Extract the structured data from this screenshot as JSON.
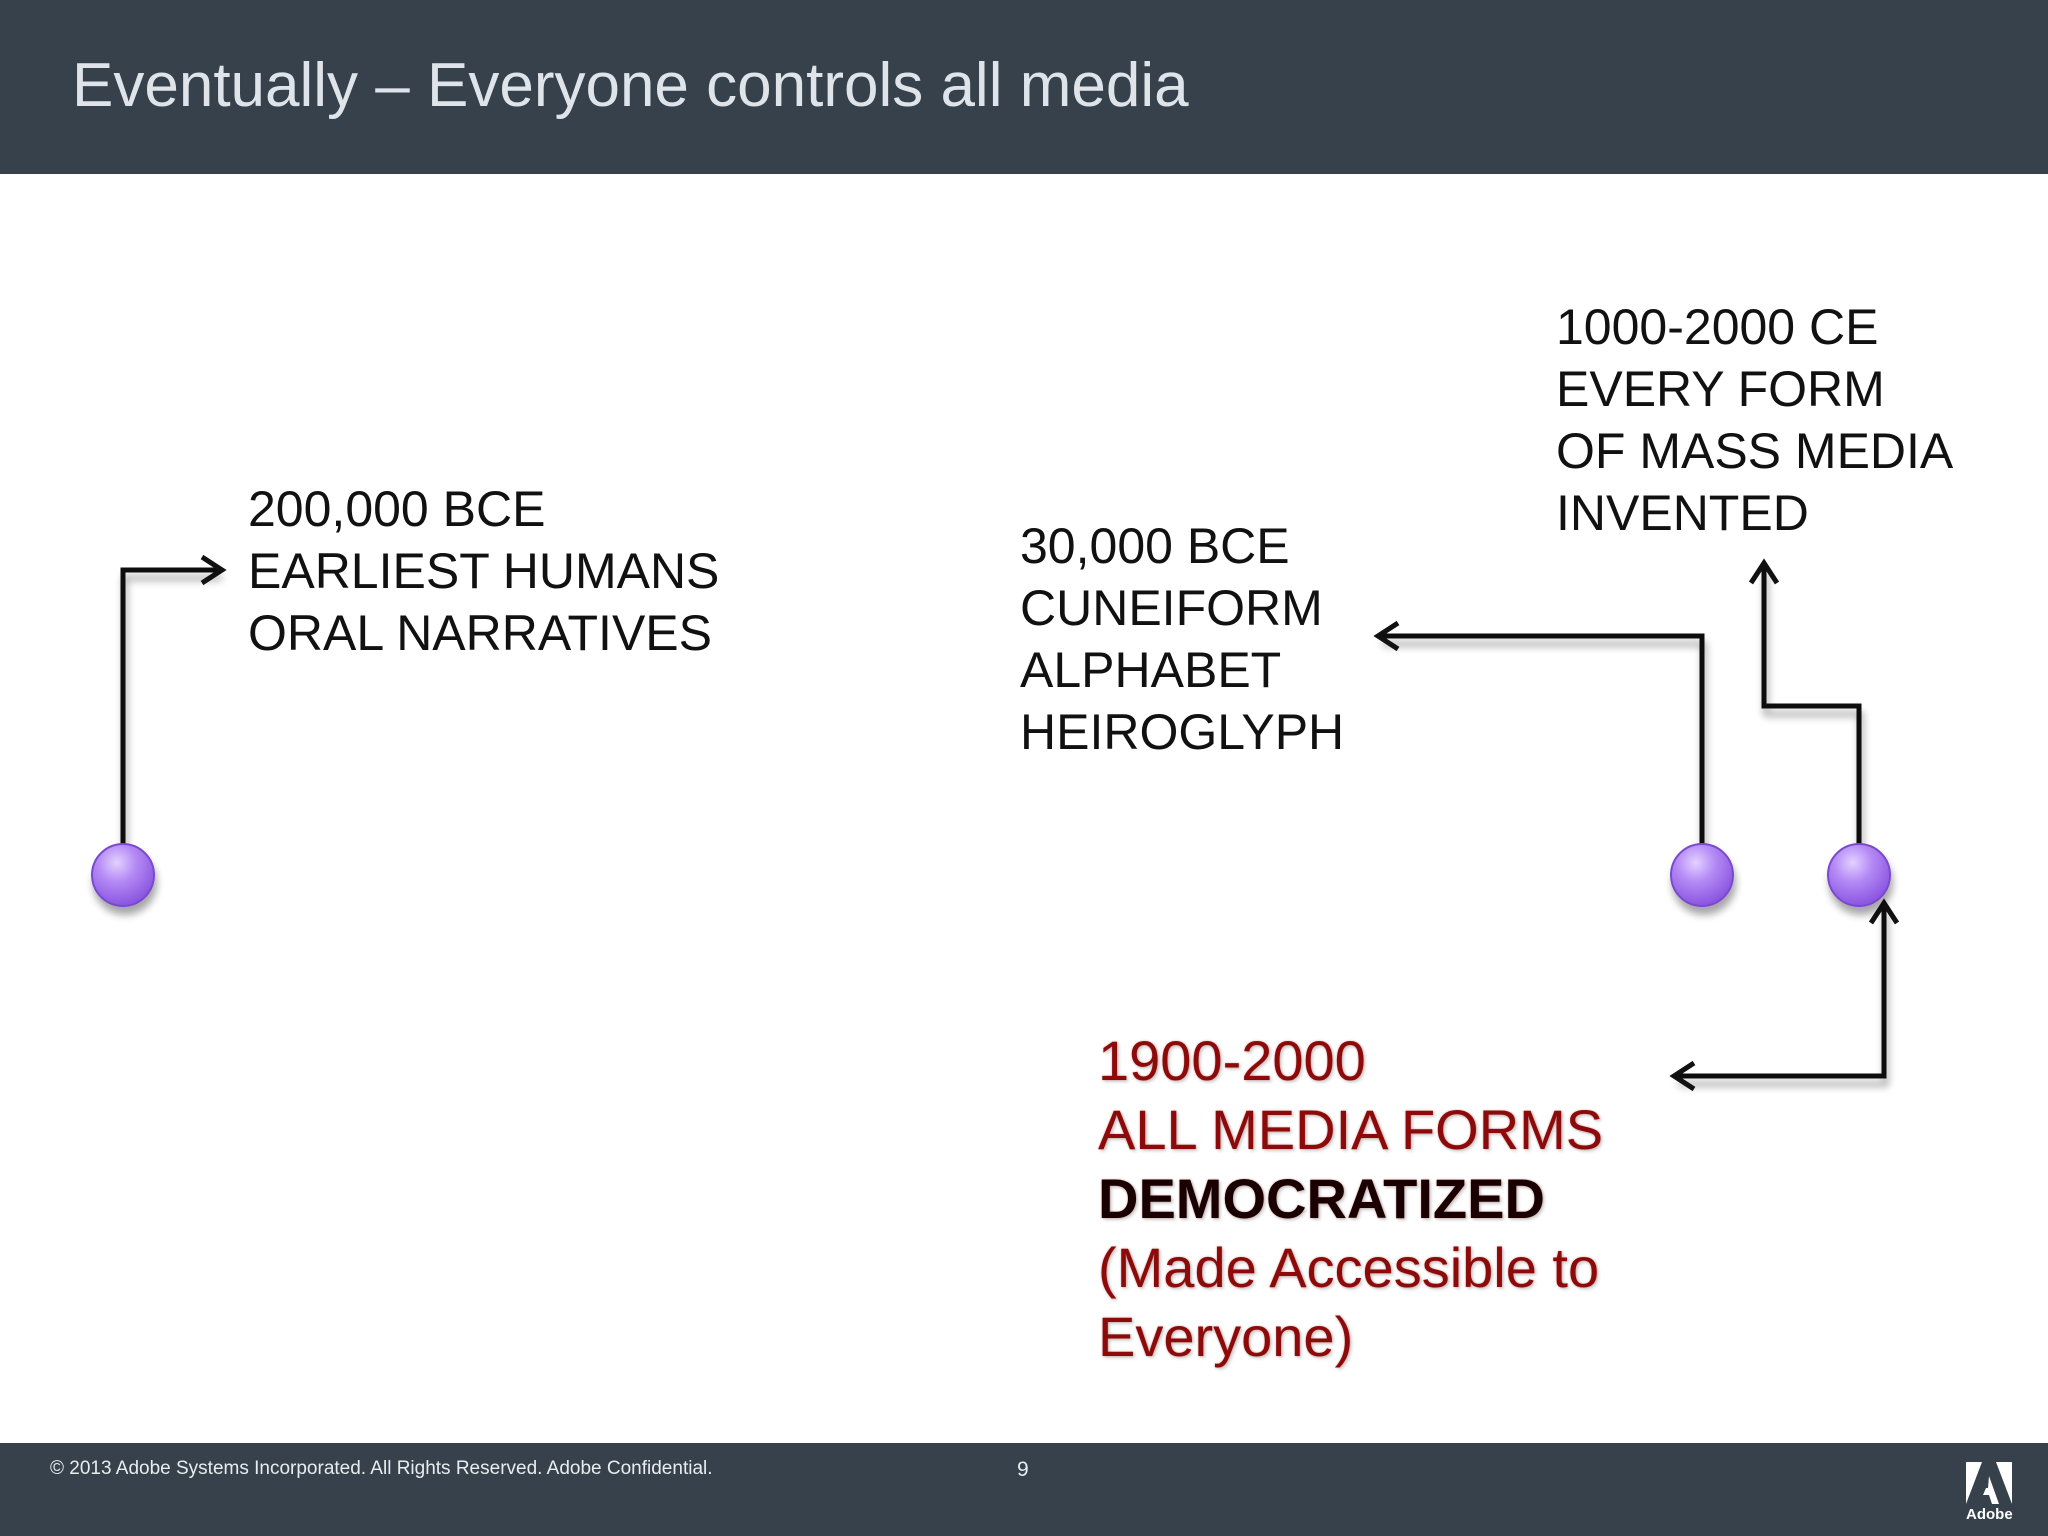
{
  "slide": {
    "title": "Eventually – Everyone controls all media",
    "footer": {
      "copyright": "© 2013 Adobe Systems Incorporated.  All Rights Reserved.  Adobe Confidential.",
      "page_number": "9",
      "logo_text": "Adobe"
    }
  },
  "timeline": {
    "events": [
      {
        "lines": [
          "200,000 BCE",
          "EARLIEST HUMANS",
          "ORAL NARRATIVES"
        ]
      },
      {
        "lines": [
          "30,000 BCE",
          "CUNEIFORM",
          "ALPHABET",
          "HEIROGLYPH"
        ]
      },
      {
        "lines": [
          "1000-2000 CE",
          "EVERY FORM",
          "OF MASS MEDIA",
          "INVENTED"
        ]
      },
      {
        "lines": [
          "1900-2000",
          "ALL MEDIA FORMS",
          "DEMOCRATIZED",
          "(Made Accessible to",
          "Everyone)"
        ],
        "highlight_color": "#8c0a0a"
      }
    ],
    "node_color": "#a774f0",
    "line_color": "#111111"
  }
}
